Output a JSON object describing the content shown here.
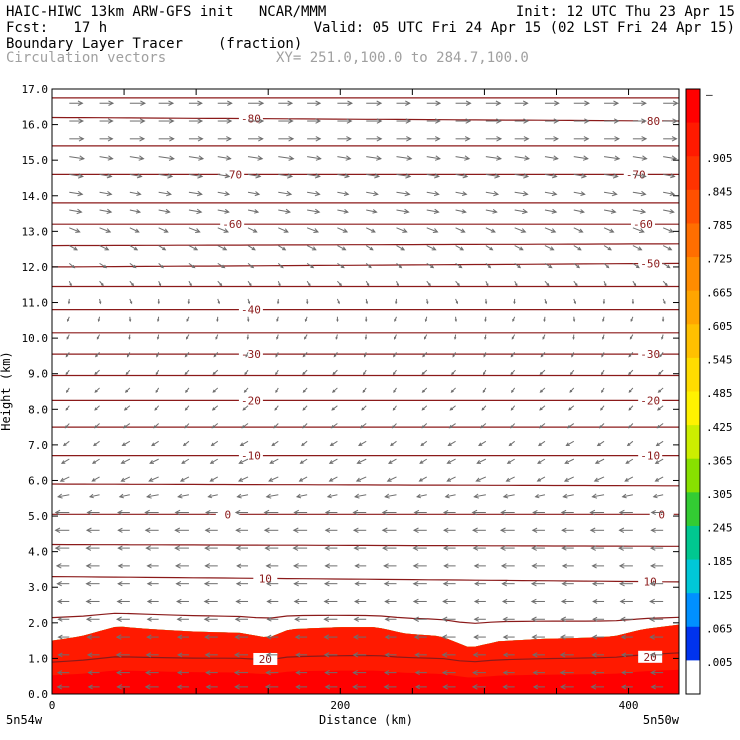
{
  "header": {
    "line1_left": "HAIC-HIWC 13km ARW-GFS init   NCAR/MMM",
    "line1_right": "Init: 12 UTC Thu 23 Apr 15",
    "line2_left": "Fcst:   17 h",
    "line2_right": "Valid: 05 UTC Fri 24 Apr 15 (02 LST Fri 24 Apr 15)",
    "line3_left": "Boundary Layer Tracer",
    "line3_mid": "(fraction)",
    "line4_left": "Circulation vectors",
    "line4_mid": "XY= 251.0,100.0 to 284.7,100.0"
  },
  "chart_data": {
    "type": "heatmap",
    "xlabel": "Distance (km)",
    "ylabel": "Height (km)",
    "xlim": [
      0,
      435
    ],
    "ylim": [
      0,
      17
    ],
    "x_ticks": [
      {
        "value": 0,
        "label": "0"
      },
      {
        "value": 200,
        "label": "200"
      },
      {
        "value": 400,
        "label": "400"
      }
    ],
    "y_ticks": [
      "0.0",
      "1.0",
      "2.0",
      "3.0",
      "4.0",
      "5.0",
      "6.0",
      "7.0",
      "8.0",
      "9.0",
      "10.0",
      "11.0",
      "12.0",
      "13.0",
      "14.0",
      "15.0",
      "16.0",
      "17.0"
    ],
    "endpoint_labels": {
      "left": "5n54w",
      "right": "5n50w"
    },
    "colorbar": {
      "labels": [
        "–",
        ".905",
        ".845",
        ".785",
        ".725",
        ".665",
        ".605",
        ".545",
        ".485",
        ".425",
        ".365",
        ".305",
        ".245",
        ".185",
        ".125",
        ".065",
        ".005"
      ],
      "colors": [
        "#ff0000",
        "#ff1a00",
        "#ff3300",
        "#ff5000",
        "#ff6e00",
        "#ff8c00",
        "#ffa500",
        "#ffc000",
        "#ffdc00",
        "#fff200",
        "#ccee00",
        "#88e000",
        "#33cc33",
        "#00c890",
        "#00c8d8",
        "#0090ff",
        "#0033ee",
        "#ffffff"
      ]
    },
    "tracer_top_km": [
      [
        0,
        1.5
      ],
      [
        20,
        1.62
      ],
      [
        45,
        1.9
      ],
      [
        70,
        1.82
      ],
      [
        100,
        1.75
      ],
      [
        130,
        1.72
      ],
      [
        150,
        1.58
      ],
      [
        165,
        1.82
      ],
      [
        200,
        1.88
      ],
      [
        225,
        1.88
      ],
      [
        245,
        1.7
      ],
      [
        270,
        1.62
      ],
      [
        290,
        1.3
      ],
      [
        310,
        1.48
      ],
      [
        340,
        1.55
      ],
      [
        370,
        1.58
      ],
      [
        390,
        1.62
      ],
      [
        410,
        1.82
      ],
      [
        435,
        1.95
      ]
    ],
    "tracer_layers_km": [
      {
        "frac": 0.0,
        "value": 0.95
      },
      {
        "frac": 0.35,
        "value": 0.6
      },
      {
        "frac": 0.55,
        "value": 0.3
      },
      {
        "frac": 0.7,
        "value": 0.15
      },
      {
        "frac": 0.85,
        "value": 0.04
      }
    ],
    "contours": [
      {
        "value": 20,
        "y_left": 0.95,
        "y_right": 1.05,
        "labels": [
          {
            "x": 148,
            "text": "20"
          },
          {
            "x": 415,
            "text": "20"
          }
        ]
      },
      {
        "value": 15,
        "y_left": 2.2,
        "y_right": 2.05,
        "labels": []
      },
      {
        "value": 10,
        "y_left": 3.3,
        "y_right": 3.15,
        "labels": [
          {
            "x": 148,
            "text": "10"
          },
          {
            "x": 415,
            "text": "10"
          }
        ]
      },
      {
        "value": 5,
        "y_left": 4.2,
        "y_right": 4.15,
        "labels": []
      },
      {
        "value": 0,
        "y_left": 5.05,
        "y_right": 5.05,
        "labels": [
          {
            "x": 122,
            "text": "0"
          },
          {
            "x": 423,
            "text": "0"
          }
        ]
      },
      {
        "value": -5,
        "y_left": 5.9,
        "y_right": 5.85,
        "labels": []
      },
      {
        "value": -10,
        "y_left": 6.7,
        "y_right": 6.7,
        "labels": [
          {
            "x": 138,
            "text": "-10"
          },
          {
            "x": 415,
            "text": "-10"
          }
        ]
      },
      {
        "value": -15,
        "y_left": 7.5,
        "y_right": 7.5,
        "labels": []
      },
      {
        "value": -20,
        "y_left": 8.25,
        "y_right": 8.25,
        "labels": [
          {
            "x": 138,
            "text": "-20"
          },
          {
            "x": 415,
            "text": "-20"
          }
        ]
      },
      {
        "value": -25,
        "y_left": 8.95,
        "y_right": 8.95,
        "labels": []
      },
      {
        "value": -30,
        "y_left": 9.55,
        "y_right": 9.55,
        "labels": [
          {
            "x": 138,
            "text": "-30"
          },
          {
            "x": 415,
            "text": "-30"
          }
        ]
      },
      {
        "value": -35,
        "y_left": 10.15,
        "y_right": 10.15,
        "labels": []
      },
      {
        "value": -40,
        "y_left": 10.8,
        "y_right": 10.8,
        "labels": [
          {
            "x": 138,
            "text": "-40"
          }
        ]
      },
      {
        "value": -45,
        "y_left": 11.45,
        "y_right": 11.45,
        "labels": []
      },
      {
        "value": -50,
        "y_left": 12.0,
        "y_right": 12.1,
        "labels": [
          {
            "x": 415,
            "text": "-50"
          }
        ]
      },
      {
        "value": -55,
        "y_left": 12.6,
        "y_right": 12.65,
        "labels": []
      },
      {
        "value": -60,
        "y_left": 13.2,
        "y_right": 13.2,
        "labels": [
          {
            "x": 125,
            "text": "-60"
          },
          {
            "x": 410,
            "text": "-60"
          }
        ]
      },
      {
        "value": -65,
        "y_left": 13.8,
        "y_right": 13.8,
        "labels": []
      },
      {
        "value": -70,
        "y_left": 14.6,
        "y_right": 14.6,
        "labels": [
          {
            "x": 125,
            "text": "-70"
          },
          {
            "x": 405,
            "text": "-70"
          }
        ]
      },
      {
        "value": -75,
        "y_left": 15.4,
        "y_right": 15.4,
        "labels": []
      },
      {
        "value": -80,
        "y_left": 16.2,
        "y_right": 16.1,
        "labels": [
          {
            "x": 138,
            "text": "-80"
          },
          {
            "x": 415,
            "text": "-80"
          }
        ]
      },
      {
        "value": -85,
        "y_left": 16.75,
        "y_right": 16.75,
        "labels": []
      }
    ],
    "vectors": {
      "x_positions_km": [
        12,
        33,
        54,
        74,
        95,
        115,
        136,
        157,
        177,
        198,
        218,
        239,
        260,
        280,
        301,
        321,
        342,
        362,
        383,
        403,
        424
      ],
      "levels": [
        {
          "y": 16.6,
          "u": 1.0,
          "w": 0.0
        },
        {
          "y": 16.1,
          "u": 1.0,
          "w": 0.0
        },
        {
          "y": 15.6,
          "u": 1.0,
          "w": 0.0
        },
        {
          "y": 15.1,
          "u": 1.0,
          "w": -0.05
        },
        {
          "y": 14.6,
          "u": 0.9,
          "w": -0.05
        },
        {
          "y": 14.1,
          "u": 0.85,
          "w": -0.05
        },
        {
          "y": 13.6,
          "u": 0.8,
          "w": -0.05
        },
        {
          "y": 13.1,
          "u": 0.7,
          "w": -0.1
        },
        {
          "y": 12.6,
          "u": 0.55,
          "w": -0.1
        },
        {
          "y": 12.1,
          "u": 0.4,
          "w": -0.1
        },
        {
          "y": 11.6,
          "u": 0.2,
          "w": -0.1
        },
        {
          "y": 11.1,
          "u": 0.05,
          "w": -0.1
        },
        {
          "y": 10.6,
          "u": -0.05,
          "w": -0.1
        },
        {
          "y": 10.1,
          "u": -0.1,
          "w": -0.1
        },
        {
          "y": 9.6,
          "u": -0.2,
          "w": -0.1
        },
        {
          "y": 9.1,
          "u": -0.25,
          "w": -0.1
        },
        {
          "y": 8.6,
          "u": -0.25,
          "w": -0.1
        },
        {
          "y": 8.1,
          "u": -0.3,
          "w": -0.1
        },
        {
          "y": 7.6,
          "u": -0.35,
          "w": -0.1
        },
        {
          "y": 7.1,
          "u": -0.45,
          "w": -0.1
        },
        {
          "y": 6.6,
          "u": -0.55,
          "w": -0.1
        },
        {
          "y": 6.1,
          "u": -0.6,
          "w": -0.1
        },
        {
          "y": 5.6,
          "u": -0.75,
          "w": -0.05
        },
        {
          "y": 5.1,
          "u": -0.9,
          "w": 0.0
        },
        {
          "y": 4.6,
          "u": -0.9,
          "w": 0.0
        },
        {
          "y": 4.1,
          "u": -0.9,
          "w": 0.0
        },
        {
          "y": 3.6,
          "u": -0.85,
          "w": 0.0
        },
        {
          "y": 3.1,
          "u": -0.85,
          "w": 0.0
        },
        {
          "y": 2.6,
          "u": -0.85,
          "w": 0.0
        },
        {
          "y": 2.1,
          "u": -0.85,
          "w": 0.0
        },
        {
          "y": 1.6,
          "u": -0.85,
          "w": 0.0
        },
        {
          "y": 1.1,
          "u": -0.85,
          "w": 0.0
        },
        {
          "y": 0.6,
          "u": -0.85,
          "w": 0.0
        },
        {
          "y": 0.2,
          "u": -0.85,
          "w": 0.0
        }
      ]
    }
  }
}
